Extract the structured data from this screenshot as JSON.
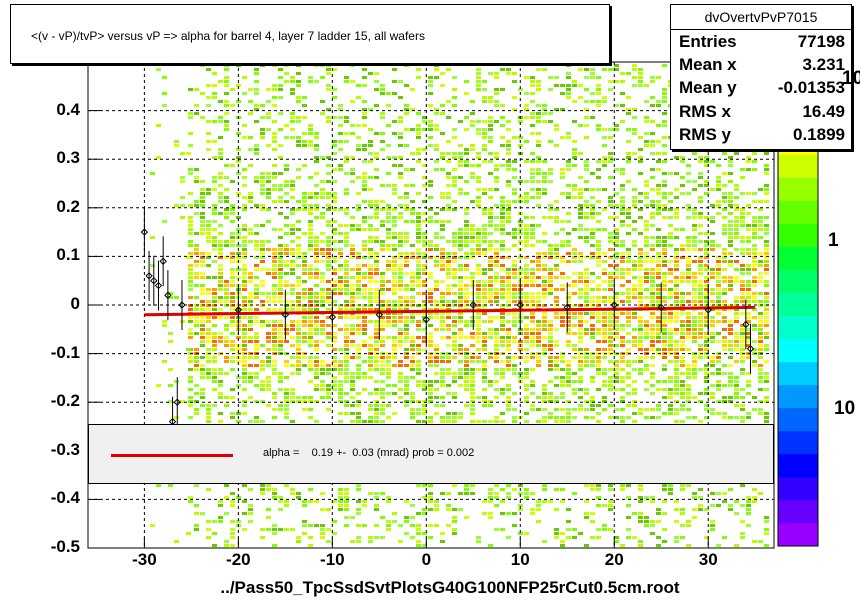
{
  "title": "<(v - vP)/tvP>  versus   vP => alpha for barrel 4, layer 7 ladder 15, all wafers",
  "stats": {
    "name": "dvOvertvPvP7015",
    "rows": [
      {
        "label": "Entries",
        "value": "77198"
      },
      {
        "label": "Mean x",
        "value": "3.231"
      },
      {
        "label": "Mean y",
        "value": "-0.01353"
      },
      {
        "label": "RMS x",
        "value": "16.49"
      },
      {
        "label": "RMS y",
        "value": "0.1899"
      }
    ]
  },
  "fit_text": "alpha =    0.19 +-  0.03 (mrad) prob = 0.002",
  "xlabel": "../Pass50_TpcSsdSvtPlotsG40G100NFP25rCut0.5cm.root",
  "colors": {
    "fit_line": "#e00000",
    "frame": "#000000",
    "grid": "#000000"
  },
  "chart_data": {
    "type": "heatmap",
    "xlim": [
      -36,
      37
    ],
    "ylim": [
      -0.5,
      0.5
    ],
    "x_ticks": [
      "-30",
      "-20",
      "-10",
      "0",
      "10",
      "20",
      "30"
    ],
    "y_ticks": [
      "0.4",
      "0.3",
      "0.2",
      "0.1",
      "0",
      "-0.1",
      "-0.2",
      "-0.3",
      "-0.4",
      "-0.5"
    ],
    "y_tick_top_partial": "0.5",
    "z_scale_labels": [
      "10",
      "1",
      "10"
    ],
    "z_scale": "log",
    "grid": true,
    "fit": {
      "x_range": [
        -30,
        35
      ],
      "y_start": -0.02,
      "y_end": -0.005
    },
    "profile_points": [
      {
        "x": -30.0,
        "y": 0.15
      },
      {
        "x": -29.5,
        "y": 0.06
      },
      {
        "x": -29.0,
        "y": 0.05
      },
      {
        "x": -28.5,
        "y": 0.04
      },
      {
        "x": -28.0,
        "y": 0.09
      },
      {
        "x": -27.5,
        "y": 0.02
      },
      {
        "x": -27.0,
        "y": -0.24
      },
      {
        "x": -26.5,
        "y": -0.2
      },
      {
        "x": -26.0,
        "y": 0.0
      },
      {
        "x": -20.0,
        "y": -0.01
      },
      {
        "x": -15.0,
        "y": -0.02
      },
      {
        "x": -10.0,
        "y": -0.025
      },
      {
        "x": -5.0,
        "y": -0.02
      },
      {
        "x": 0.0,
        "y": -0.03
      },
      {
        "x": 5.0,
        "y": 0.0
      },
      {
        "x": 10.0,
        "y": 0.0
      },
      {
        "x": 15.0,
        "y": -0.005
      },
      {
        "x": 20.0,
        "y": 0.0
      },
      {
        "x": 25.0,
        "y": -0.005
      },
      {
        "x": 30.0,
        "y": -0.01
      },
      {
        "x": 34.0,
        "y": -0.04
      },
      {
        "x": 34.5,
        "y": -0.09
      }
    ]
  }
}
